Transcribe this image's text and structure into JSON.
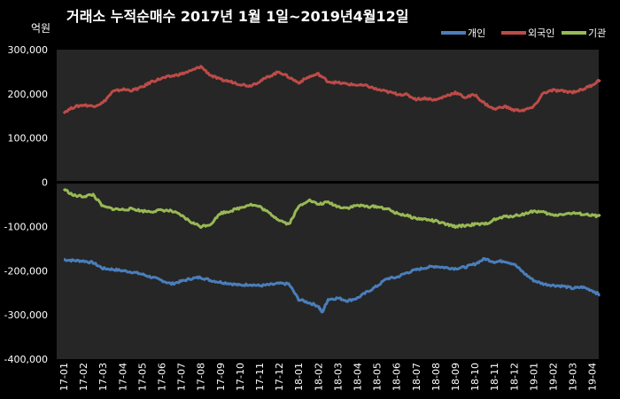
{
  "chart_data": {
    "type": "line",
    "title": "거래소  누적순매수 2017년 1월 1일~2019년4월12일",
    "ylabel": "억원",
    "ylim": [
      -400000,
      300000
    ],
    "yticks": [
      300000,
      200000,
      100000,
      0,
      -100000,
      -200000,
      -300000,
      -400000
    ],
    "ytick_labels": [
      "300,000",
      "200,000",
      "100,000",
      "0",
      "-100,000",
      "-200,000",
      "-300,000",
      "-400,000"
    ],
    "x_labels": [
      "17-01",
      "17-02",
      "17-03",
      "17-04",
      "17-05",
      "17-06",
      "17-07",
      "17-08",
      "17-09",
      "17-10",
      "17-11",
      "17-12",
      "18-01",
      "18-02",
      "18-03",
      "18-04",
      "18-05",
      "18-06",
      "18-07",
      "18-08",
      "18-09",
      "18-10",
      "18-11",
      "18-12",
      "19-01",
      "19-02",
      "19-03",
      "19-04"
    ],
    "x_end": 27.4,
    "grid": "vertical-off horizontal-off",
    "legend_placement": "top-right",
    "series": [
      {
        "name": "개인",
        "color": "#4a7ebb",
        "points": [
          [
            0,
            -175000
          ],
          [
            0.5,
            -177000
          ],
          [
            1,
            -178000
          ],
          [
            1.5,
            -182000
          ],
          [
            2,
            -195000
          ],
          [
            2.5,
            -197000
          ],
          [
            3,
            -200000
          ],
          [
            3.5,
            -203000
          ],
          [
            4,
            -208000
          ],
          [
            4.5,
            -215000
          ],
          [
            5,
            -222000
          ],
          [
            5.5,
            -230000
          ],
          [
            6,
            -224000
          ],
          [
            6.5,
            -218000
          ],
          [
            7,
            -215000
          ],
          [
            7.5,
            -222000
          ],
          [
            8,
            -226000
          ],
          [
            8.5,
            -229000
          ],
          [
            9,
            -233000
          ],
          [
            9.5,
            -231000
          ],
          [
            10,
            -234000
          ],
          [
            10.5,
            -232000
          ],
          [
            11,
            -229000
          ],
          [
            11.5,
            -230000
          ],
          [
            12,
            -265000
          ],
          [
            12.5,
            -272000
          ],
          [
            13,
            -280000
          ],
          [
            13.2,
            -295000
          ],
          [
            13.5,
            -265000
          ],
          [
            14,
            -262000
          ],
          [
            14.5,
            -268000
          ],
          [
            15,
            -262000
          ],
          [
            15.5,
            -248000
          ],
          [
            16,
            -235000
          ],
          [
            16.5,
            -218000
          ],
          [
            17,
            -215000
          ],
          [
            17.5,
            -205000
          ],
          [
            18,
            -198000
          ],
          [
            18.5,
            -193000
          ],
          [
            19,
            -190000
          ],
          [
            19.5,
            -193000
          ],
          [
            20,
            -195000
          ],
          [
            20.5,
            -192000
          ],
          [
            21,
            -185000
          ],
          [
            21.5,
            -173000
          ],
          [
            22,
            -180000
          ],
          [
            22.5,
            -178000
          ],
          [
            23,
            -185000
          ],
          [
            23.5,
            -205000
          ],
          [
            24,
            -222000
          ],
          [
            24.5,
            -230000
          ],
          [
            25,
            -233000
          ],
          [
            25.5,
            -235000
          ],
          [
            26,
            -240000
          ],
          [
            26.5,
            -237000
          ],
          [
            27,
            -245000
          ],
          [
            27.4,
            -255000
          ]
        ]
      },
      {
        "name": "외국인",
        "color": "#be4b48",
        "points": [
          [
            0,
            158000
          ],
          [
            0.5,
            170000
          ],
          [
            1,
            175000
          ],
          [
            1.5,
            172000
          ],
          [
            2,
            180000
          ],
          [
            2.5,
            205000
          ],
          [
            3,
            210000
          ],
          [
            3.5,
            208000
          ],
          [
            4,
            215000
          ],
          [
            4.5,
            228000
          ],
          [
            5,
            235000
          ],
          [
            5.5,
            240000
          ],
          [
            6,
            245000
          ],
          [
            6.5,
            252000
          ],
          [
            7,
            262000
          ],
          [
            7.5,
            242000
          ],
          [
            8,
            232000
          ],
          [
            8.5,
            228000
          ],
          [
            9,
            222000
          ],
          [
            9.5,
            218000
          ],
          [
            10,
            228000
          ],
          [
            10.5,
            240000
          ],
          [
            11,
            250000
          ],
          [
            11.5,
            238000
          ],
          [
            12,
            225000
          ],
          [
            12.5,
            238000
          ],
          [
            13,
            245000
          ],
          [
            13.5,
            228000
          ],
          [
            14,
            225000
          ],
          [
            14.5,
            222000
          ],
          [
            15,
            220000
          ],
          [
            15.5,
            218000
          ],
          [
            16,
            210000
          ],
          [
            16.5,
            205000
          ],
          [
            17,
            200000
          ],
          [
            17.5,
            198000
          ],
          [
            18,
            188000
          ],
          [
            18.5,
            190000
          ],
          [
            19,
            186000
          ],
          [
            19.5,
            195000
          ],
          [
            20,
            203000
          ],
          [
            20.5,
            192000
          ],
          [
            21,
            198000
          ],
          [
            21.5,
            178000
          ],
          [
            22,
            165000
          ],
          [
            22.5,
            172000
          ],
          [
            23,
            163000
          ],
          [
            23.5,
            163000
          ],
          [
            24,
            170000
          ],
          [
            24.5,
            202000
          ],
          [
            25,
            208000
          ],
          [
            25.5,
            206000
          ],
          [
            26,
            204000
          ],
          [
            26.5,
            210000
          ],
          [
            27,
            220000
          ],
          [
            27.4,
            232000
          ]
        ]
      },
      {
        "name": "기관",
        "color": "#98b954",
        "points": [
          [
            0,
            -15000
          ],
          [
            0.5,
            -30000
          ],
          [
            1,
            -32000
          ],
          [
            1.5,
            -28000
          ],
          [
            2,
            -55000
          ],
          [
            2.5,
            -60000
          ],
          [
            3,
            -62000
          ],
          [
            3.5,
            -60000
          ],
          [
            4,
            -65000
          ],
          [
            4.5,
            -66000
          ],
          [
            5,
            -63000
          ],
          [
            5.5,
            -65000
          ],
          [
            6,
            -75000
          ],
          [
            6.5,
            -90000
          ],
          [
            7,
            -100000
          ],
          [
            7.5,
            -95000
          ],
          [
            8,
            -70000
          ],
          [
            8.5,
            -65000
          ],
          [
            9,
            -58000
          ],
          [
            9.5,
            -50000
          ],
          [
            10,
            -55000
          ],
          [
            10.5,
            -70000
          ],
          [
            11,
            -85000
          ],
          [
            11.5,
            -95000
          ],
          [
            12,
            -55000
          ],
          [
            12.5,
            -40000
          ],
          [
            13,
            -50000
          ],
          [
            13.5,
            -45000
          ],
          [
            14,
            -55000
          ],
          [
            14.5,
            -58000
          ],
          [
            15,
            -52000
          ],
          [
            15.5,
            -55000
          ],
          [
            16,
            -55000
          ],
          [
            16.5,
            -60000
          ],
          [
            17,
            -70000
          ],
          [
            17.5,
            -75000
          ],
          [
            18,
            -82000
          ],
          [
            18.5,
            -84000
          ],
          [
            19,
            -88000
          ],
          [
            19.5,
            -95000
          ],
          [
            20,
            -100000
          ],
          [
            20.5,
            -98000
          ],
          [
            21,
            -95000
          ],
          [
            21.5,
            -95000
          ],
          [
            22,
            -85000
          ],
          [
            22.5,
            -78000
          ],
          [
            23,
            -76000
          ],
          [
            23.5,
            -72000
          ],
          [
            24,
            -65000
          ],
          [
            24.5,
            -68000
          ],
          [
            25,
            -75000
          ],
          [
            25.5,
            -72000
          ],
          [
            26,
            -70000
          ],
          [
            26.5,
            -72000
          ],
          [
            27,
            -75000
          ],
          [
            27.4,
            -77000
          ]
        ]
      }
    ]
  }
}
